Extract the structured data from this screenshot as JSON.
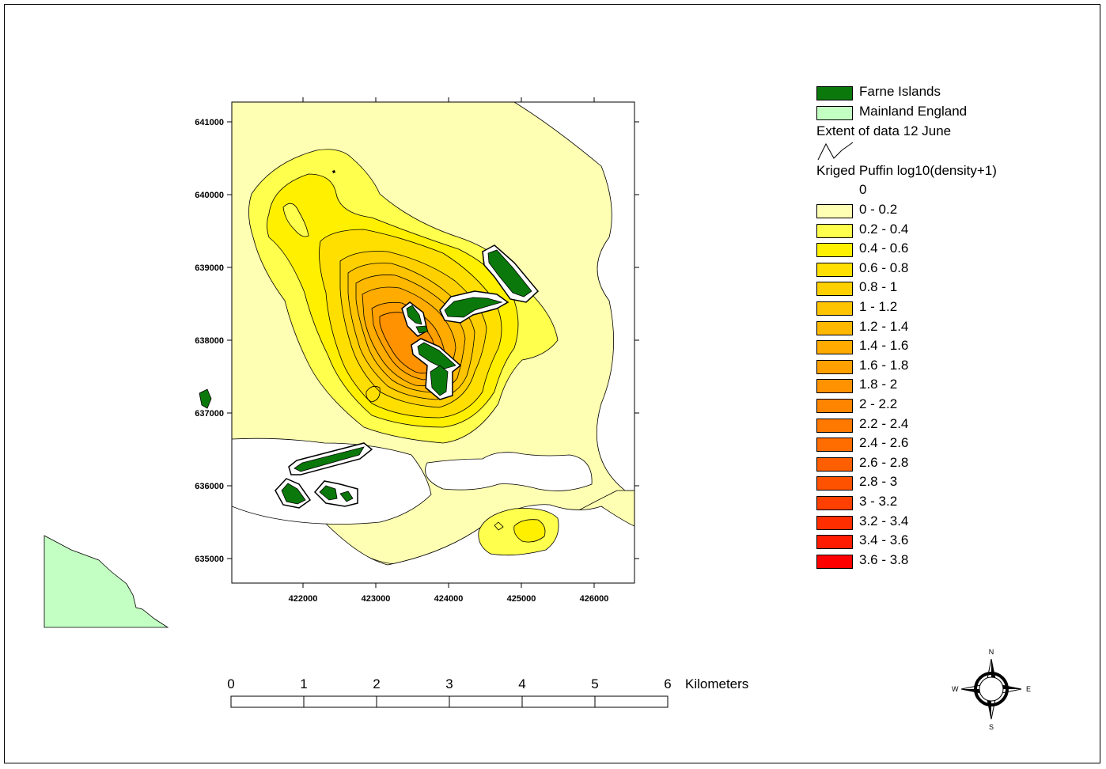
{
  "legend": {
    "farne_islands": "Farne Islands",
    "mainland_england": "Mainland England",
    "extent": "Extent of data 12 June",
    "kriged_title": "Kriged Puffin log10(density+1)",
    "zero_label": "0",
    "classes": [
      {
        "label": "0 - 0.2",
        "color": "#ffffb3"
      },
      {
        "label": "0.2 - 0.4",
        "color": "#ffff4d"
      },
      {
        "label": "0.4 - 0.6",
        "color": "#fff000"
      },
      {
        "label": "0.6 - 0.8",
        "color": "#ffdf00"
      },
      {
        "label": "0.8 - 1",
        "color": "#ffd000"
      },
      {
        "label": "1 - 1.2",
        "color": "#ffc400"
      },
      {
        "label": "1.2 - 1.4",
        "color": "#ffb800"
      },
      {
        "label": "1.4 - 1.6",
        "color": "#ffab00"
      },
      {
        "label": "1.6 - 1.8",
        "color": "#ff9f00"
      },
      {
        "label": "1.8 - 2",
        "color": "#ff9200"
      },
      {
        "label": "2 - 2.2",
        "color": "#ff8500"
      },
      {
        "label": "2.2 - 2.4",
        "color": "#ff7800"
      },
      {
        "label": "2.4 - 2.6",
        "color": "#ff6c00"
      },
      {
        "label": "2.6 - 2.8",
        "color": "#ff5f00"
      },
      {
        "label": "2.8 - 3",
        "color": "#ff5200"
      },
      {
        "label": "3 - 3.2",
        "color": "#ff4000"
      },
      {
        "label": "3.2 - 3.4",
        "color": "#ff2e00"
      },
      {
        "label": "3.4 - 3.6",
        "color": "#ff1c00"
      },
      {
        "label": "3.6 - 3.8",
        "color": "#ff0000"
      }
    ],
    "farne_color": "#0a780a",
    "mainland_color": "#c3ffc3"
  },
  "axes": {
    "x_ticks": [
      "422000",
      "423000",
      "424000",
      "425000",
      "426000"
    ],
    "y_ticks": [
      "641000",
      "640000",
      "639000",
      "638000",
      "637000",
      "636000",
      "635000"
    ]
  },
  "scale_bar": {
    "labels": [
      "0",
      "1",
      "2",
      "3",
      "4",
      "5",
      "6"
    ],
    "unit": "Kilometers"
  },
  "compass": {
    "n": "N",
    "s": "S",
    "e": "E",
    "w": "W"
  }
}
